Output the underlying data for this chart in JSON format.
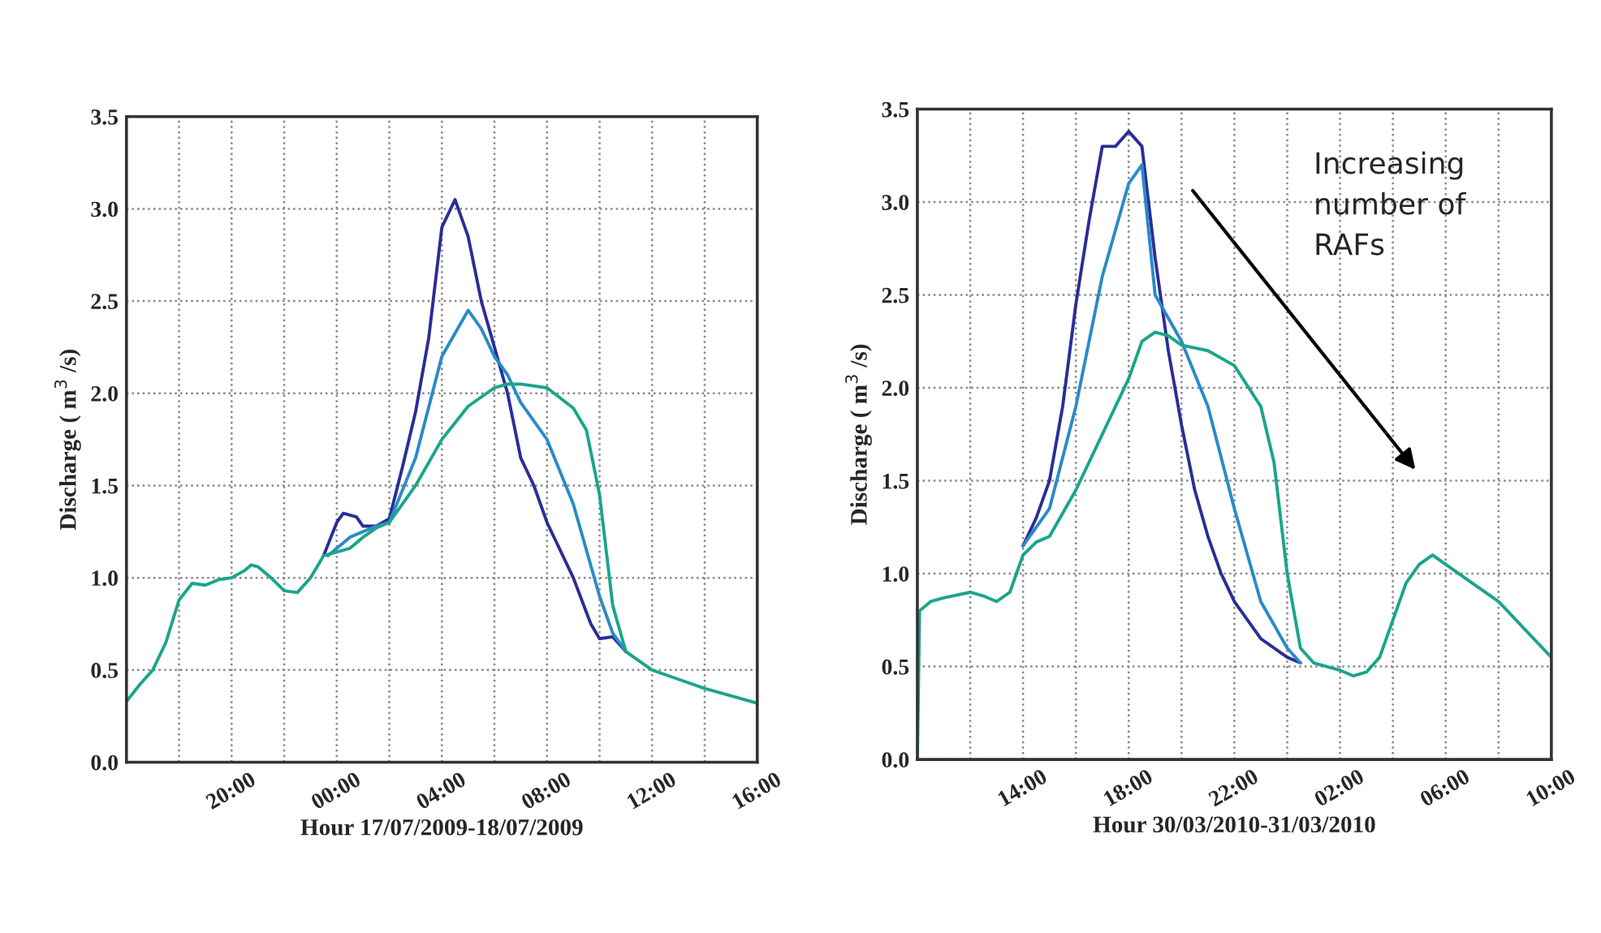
{
  "chart_data": [
    {
      "type": "line",
      "xlabel": "Hour 17/07/2009-18/07/2009",
      "ylabel": "Discharge ( m$^{3}$ /s)",
      "xlim": [
        "2009-07-17T16:00",
        "2009-07-18T16:00"
      ],
      "xticks": [
        {
          "value": "2009-07-17T18:00",
          "label": null
        },
        {
          "value": "2009-07-17T20:00",
          "label": "20:00"
        },
        {
          "value": "2009-07-17T22:00",
          "label": null
        },
        {
          "value": "2009-07-18T00:00",
          "label": "00:00"
        },
        {
          "value": "2009-07-18T02:00",
          "label": null
        },
        {
          "value": "2009-07-18T04:00",
          "label": "04:00"
        },
        {
          "value": "2009-07-18T06:00",
          "label": null
        },
        {
          "value": "2009-07-18T08:00",
          "label": "08:00"
        },
        {
          "value": "2009-07-18T10:00",
          "label": null
        },
        {
          "value": "2009-07-18T12:00",
          "label": "12:00"
        },
        {
          "value": "2009-07-18T14:00",
          "label": null
        },
        {
          "value": "2009-07-18T16:00",
          "label": "16:00"
        }
      ],
      "ylim": [
        0,
        3.5
      ],
      "yticks": [
        {
          "value": 0,
          "label": "0.0"
        },
        {
          "value": 0.5,
          "label": "0.5"
        },
        {
          "value": 1,
          "label": "1.0"
        },
        {
          "value": 1.5,
          "label": "1.5"
        },
        {
          "value": 2,
          "label": "2.0"
        },
        {
          "value": 2.5,
          "label": "2.5"
        },
        {
          "value": 3,
          "label": "3.0"
        },
        {
          "value": 3.5,
          "label": "3.5"
        }
      ],
      "grid": true,
      "line_style": "solid",
      "series": [
        {
          "color": "#2b2d96",
          "x": [
            "2009-07-17T23:30",
            "2009-07-18T00:00",
            "2009-07-18T00:15",
            "2009-07-18T00:45",
            "2009-07-18T01:00",
            "2009-07-18T01:30",
            "2009-07-18T02:00",
            "2009-07-18T02:30",
            "2009-07-18T03:00",
            "2009-07-18T03:30",
            "2009-07-18T04:00",
            "2009-07-18T04:30",
            "2009-07-18T05:00",
            "2009-07-18T05:30",
            "2009-07-18T06:00",
            "2009-07-18T06:30",
            "2009-07-18T07:00",
            "2009-07-18T07:30",
            "2009-07-18T08:00",
            "2009-07-18T09:00",
            "2009-07-18T09:40",
            "2009-07-18T10:00",
            "2009-07-18T10:30",
            "2009-07-18T11:00"
          ],
          "values": [
            1.12,
            1.3,
            1.35,
            1.33,
            1.28,
            1.28,
            1.32,
            1.6,
            1.9,
            2.3,
            2.9,
            3.05,
            2.85,
            2.5,
            2.25,
            2.0,
            1.65,
            1.5,
            1.3,
            1.0,
            0.75,
            0.67,
            0.68,
            0.6
          ]
        },
        {
          "color": "#2a8ac8",
          "x": [
            "2009-07-17T23:40",
            "2009-07-18T00:30",
            "2009-07-18T01:30",
            "2009-07-18T02:00",
            "2009-07-18T03:00",
            "2009-07-18T04:00",
            "2009-07-18T05:00",
            "2009-07-18T05:30",
            "2009-07-18T06:00",
            "2009-07-18T06:30",
            "2009-07-18T07:00",
            "2009-07-18T08:00",
            "2009-07-18T09:00",
            "2009-07-18T10:00",
            "2009-07-18T10:30",
            "2009-07-18T11:00"
          ],
          "values": [
            1.12,
            1.22,
            1.28,
            1.3,
            1.65,
            2.2,
            2.45,
            2.35,
            2.2,
            2.1,
            1.95,
            1.75,
            1.4,
            0.9,
            0.7,
            0.6
          ]
        },
        {
          "color": "#1aa58a",
          "x": [
            "2009-07-17T16:00",
            "2009-07-17T16:30",
            "2009-07-17T17:00",
            "2009-07-17T17:30",
            "2009-07-17T18:00",
            "2009-07-17T18:30",
            "2009-07-17T19:00",
            "2009-07-17T19:30",
            "2009-07-17T20:00",
            "2009-07-17T20:30",
            "2009-07-17T20:45",
            "2009-07-17T21:00",
            "2009-07-17T21:30",
            "2009-07-17T22:00",
            "2009-07-17T22:30",
            "2009-07-17T23:00",
            "2009-07-17T23:30",
            "2009-07-18T00:00",
            "2009-07-18T00:30",
            "2009-07-18T01:00",
            "2009-07-18T01:30",
            "2009-07-18T02:00",
            "2009-07-18T03:00",
            "2009-07-18T04:00",
            "2009-07-18T05:00",
            "2009-07-18T06:00",
            "2009-07-18T06:30",
            "2009-07-18T07:00",
            "2009-07-18T08:00",
            "2009-07-18T09:00",
            "2009-07-18T09:30",
            "2009-07-18T10:00",
            "2009-07-18T10:30",
            "2009-07-18T11:00",
            "2009-07-18T12:00",
            "2009-07-18T13:00",
            "2009-07-18T14:00",
            "2009-07-18T15:00",
            "2009-07-18T16:00"
          ],
          "values": [
            0.33,
            0.42,
            0.5,
            0.65,
            0.88,
            0.97,
            0.96,
            0.99,
            1.0,
            1.04,
            1.07,
            1.06,
            1.0,
            0.93,
            0.92,
            1.0,
            1.12,
            1.14,
            1.16,
            1.22,
            1.27,
            1.3,
            1.5,
            1.75,
            1.93,
            2.03,
            2.05,
            2.05,
            2.03,
            1.92,
            1.8,
            1.45,
            0.85,
            0.6,
            0.5,
            0.45,
            0.4,
            0.36,
            0.32
          ]
        }
      ]
    },
    {
      "type": "line",
      "xlabel": "Hour 30/03/2010-31/03/2010",
      "ylabel": "Discharge ( m$^{3}$ /s)",
      "annotations": [
        "Increasing number of RAFs"
      ],
      "xlim": [
        "2010-03-30T10:00",
        "2010-03-31T10:00"
      ],
      "xticks": [
        {
          "value": "2010-03-30T12:00",
          "label": null
        },
        {
          "value": "2010-03-30T14:00",
          "label": "14:00"
        },
        {
          "value": "2010-03-30T16:00",
          "label": null
        },
        {
          "value": "2010-03-30T18:00",
          "label": "18:00"
        },
        {
          "value": "2010-03-30T20:00",
          "label": null
        },
        {
          "value": "2010-03-30T22:00",
          "label": "22:00"
        },
        {
          "value": "2010-03-31T00:00",
          "label": null
        },
        {
          "value": "2010-03-31T02:00",
          "label": "02:00"
        },
        {
          "value": "2010-03-31T04:00",
          "label": null
        },
        {
          "value": "2010-03-31T06:00",
          "label": "06:00"
        },
        {
          "value": "2010-03-31T08:00",
          "label": null
        },
        {
          "value": "2010-03-31T10:00",
          "label": "10:00"
        }
      ],
      "ylim": [
        0,
        3.5
      ],
      "yticks": [
        {
          "value": 0,
          "label": "0.0"
        },
        {
          "value": 0.5,
          "label": "0.5"
        },
        {
          "value": 1,
          "label": "1.0"
        },
        {
          "value": 1.5,
          "label": "1.5"
        },
        {
          "value": 2,
          "label": "2.0"
        },
        {
          "value": 2.5,
          "label": "2.5"
        },
        {
          "value": 3,
          "label": "3.0"
        },
        {
          "value": 3.5,
          "label": "3.5"
        }
      ],
      "grid": true,
      "line_style": "solid",
      "series": [
        {
          "color": "#2b2d96",
          "x": [
            "2010-03-30T14:00",
            "2010-03-30T14:30",
            "2010-03-30T15:00",
            "2010-03-30T15:30",
            "2010-03-30T16:00",
            "2010-03-30T16:30",
            "2010-03-30T17:00",
            "2010-03-30T17:30",
            "2010-03-30T18:00",
            "2010-03-30T18:30",
            "2010-03-30T19:00",
            "2010-03-30T19:30",
            "2010-03-30T20:00",
            "2010-03-30T20:30",
            "2010-03-30T21:00",
            "2010-03-30T21:30",
            "2010-03-30T22:00",
            "2010-03-30T23:00",
            "2010-03-31T00:00",
            "2010-03-31T00:30"
          ],
          "values": [
            1.15,
            1.3,
            1.5,
            1.9,
            2.45,
            2.9,
            3.3,
            3.3,
            3.38,
            3.3,
            2.7,
            2.2,
            1.8,
            1.45,
            1.2,
            1.0,
            0.85,
            0.65,
            0.55,
            0.52
          ]
        },
        {
          "color": "#2a8ac8",
          "x": [
            "2010-03-30T14:00",
            "2010-03-30T15:00",
            "2010-03-30T16:00",
            "2010-03-30T17:00",
            "2010-03-30T18:00",
            "2010-03-30T18:30",
            "2010-03-30T19:00",
            "2010-03-30T20:00",
            "2010-03-30T21:00",
            "2010-03-30T22:00",
            "2010-03-30T23:00",
            "2010-03-31T00:00",
            "2010-03-31T00:30"
          ],
          "values": [
            1.15,
            1.35,
            1.9,
            2.6,
            3.1,
            3.2,
            2.5,
            2.25,
            1.9,
            1.35,
            0.85,
            0.6,
            0.52
          ]
        },
        {
          "color": "#1aa58a",
          "x": [
            "2010-03-30T10:00",
            "2010-03-30T10:05",
            "2010-03-30T10:30",
            "2010-03-30T11:00",
            "2010-03-30T12:00",
            "2010-03-30T12:30",
            "2010-03-30T13:00",
            "2010-03-30T13:30",
            "2010-03-30T14:00",
            "2010-03-30T14:30",
            "2010-03-30T15:00",
            "2010-03-30T16:00",
            "2010-03-30T17:00",
            "2010-03-30T18:00",
            "2010-03-30T18:30",
            "2010-03-30T19:00",
            "2010-03-30T19:30",
            "2010-03-30T20:00",
            "2010-03-30T21:00",
            "2010-03-30T22:00",
            "2010-03-30T23:00",
            "2010-03-30T23:30",
            "2010-03-31T00:00",
            "2010-03-31T00:30",
            "2010-03-31T01:00",
            "2010-03-31T02:00",
            "2010-03-31T02:30",
            "2010-03-31T03:00",
            "2010-03-31T03:30",
            "2010-03-31T04:00",
            "2010-03-31T04:30",
            "2010-03-31T05:00",
            "2010-03-31T05:30",
            "2010-03-31T06:00",
            "2010-03-31T06:30",
            "2010-03-31T07:00",
            "2010-03-31T08:00",
            "2010-03-31T09:00",
            "2010-03-31T10:00"
          ],
          "values": [
            0.0,
            0.8,
            0.85,
            0.87,
            0.9,
            0.88,
            0.85,
            0.9,
            1.1,
            1.17,
            1.2,
            1.45,
            1.75,
            2.05,
            2.25,
            2.3,
            2.28,
            2.23,
            2.2,
            2.12,
            1.9,
            1.6,
            1.0,
            0.6,
            0.52,
            0.48,
            0.45,
            0.47,
            0.55,
            0.75,
            0.95,
            1.05,
            1.1,
            1.05,
            1.0,
            0.95,
            0.85,
            0.7,
            0.55
          ]
        }
      ]
    }
  ]
}
